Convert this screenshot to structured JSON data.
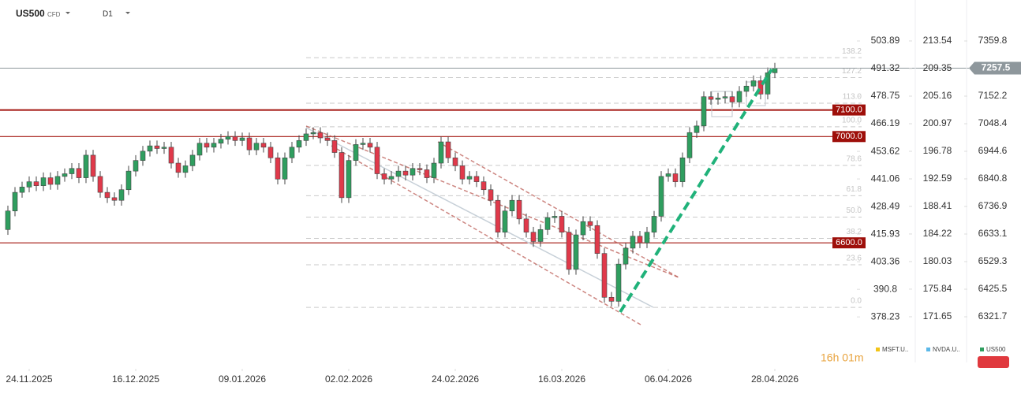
{
  "chart_data": {
    "type": "candlestick",
    "symbol": "US500",
    "instrument_type": "CFD",
    "timeframe": "D1",
    "countdown": "16h 01m",
    "up_color": "#2f9e5f",
    "down_color": "#e0394a",
    "xlim": [
      -1.111,
      120.778
    ],
    "xticks": [
      {
        "value": 3,
        "label": "24.11.2025"
      },
      {
        "value": 18,
        "label": "16.12.2025"
      },
      {
        "value": 33,
        "label": "09.01.2026"
      },
      {
        "value": 48,
        "label": "02.02.2026"
      },
      {
        "value": 63,
        "label": "24.02.2026"
      },
      {
        "value": 78,
        "label": "16.03.2026"
      },
      {
        "value": 93,
        "label": "06.04.2026"
      },
      {
        "value": 108,
        "label": "28.04.2026"
      }
    ],
    "ylim": [
      6149.7,
      7514.0
    ],
    "yticks": [
      7359.8,
      7152.2,
      7048.4,
      6944.6,
      6840.8,
      6736.9,
      6633.1,
      6529.3,
      6425.5,
      6321.7
    ],
    "y2lim": [
      357.48,
      522.55
    ],
    "y2ticks": [
      503.89,
      491.32,
      478.75,
      466.19,
      453.62,
      441.06,
      428.49,
      415.93,
      403.36,
      390.8,
      378.23
    ],
    "y3lim": [
      164.7,
      219.76
    ],
    "y3ticks": [
      213.54,
      209.35,
      205.16,
      200.97,
      196.78,
      192.59,
      188.41,
      184.22,
      180.03,
      175.84,
      171.65
    ],
    "last_price": 7257.5,
    "levels": [
      {
        "value": 7100,
        "label": "7100.0"
      },
      {
        "value": 7000,
        "label": "7000.0"
      },
      {
        "value": 6600,
        "label": "6600.0"
      }
    ],
    "fib_range": [
      6357,
      7037
    ],
    "fib_levels": [
      138.2,
      127.2,
      {
        "value": 113,
        "label": "113.0"
      },
      {
        "value": 100,
        "label": "100.0"
      },
      78.6,
      61.8,
      {
        "value": 50,
        "label": "50.0"
      },
      38.2,
      23.6,
      {
        "value": 0,
        "label": "0.0"
      }
    ],
    "legend": [
      {
        "name": "MSFT.U..",
        "color": "#f2c417"
      },
      {
        "name": "NVDA.U..",
        "color": "#5bb8e8"
      },
      {
        "name": "US500",
        "color": "#2f9e5f"
      }
    ],
    "open": [
      6650,
      6720,
      6790,
      6810,
      6830,
      6815,
      6845,
      6820,
      6850,
      6860,
      6880,
      6845,
      6930,
      6850,
      6790,
      6770,
      6760,
      6800,
      6870,
      6910,
      6945,
      6965,
      6955,
      6960,
      6900,
      6865,
      6890,
      6930,
      6975,
      6960,
      6975,
      6990,
      7000,
      6985,
      6995,
      6950,
      6975,
      6960,
      6920,
      6840,
      6920,
      6960,
      6985,
      7010,
      7015,
      6995,
      6985,
      6940,
      6770,
      6910,
      6970,
      6975,
      6960,
      6860,
      6840,
      6850,
      6870,
      6855,
      6880,
      6875,
      6845,
      6900,
      6980,
      6920,
      6890,
      6840,
      6850,
      6830,
      6800,
      6760,
      6640,
      6720,
      6760,
      6690,
      6640,
      6605,
      6650,
      6695,
      6700,
      6640,
      6500,
      6630,
      6680,
      6665,
      6560,
      6395,
      6380,
      6520,
      6580,
      6625,
      6600,
      6640,
      6700,
      6850,
      6860,
      6830,
      6920,
      7015,
      7040,
      7150,
      7140,
      7145,
      7150,
      7130,
      7170,
      7190,
      7210,
      7160,
      7240
    ],
    "high": [
      6740,
      6810,
      6830,
      6850,
      6850,
      6865,
      6865,
      6870,
      6880,
      6900,
      6900,
      6950,
      6950,
      6870,
      6810,
      6790,
      6820,
      6890,
      6930,
      6965,
      6985,
      6985,
      6980,
      6980,
      6920,
      6910,
      6950,
      6995,
      6995,
      6995,
      7010,
      7020,
      7020,
      7015,
      7015,
      6995,
      6995,
      6980,
      6940,
      6940,
      6980,
      7005,
      7030,
      7035,
      7035,
      7015,
      7005,
      6960,
      6930,
      6990,
      6995,
      6995,
      6980,
      6880,
      6870,
      6890,
      6890,
      6900,
      6900,
      6895,
      6920,
      7000,
      7000,
      6940,
      6910,
      6870,
      6870,
      6850,
      6820,
      6780,
      6740,
      6780,
      6780,
      6710,
      6660,
      6670,
      6715,
      6720,
      6720,
      6660,
      6650,
      6700,
      6700,
      6685,
      6580,
      6415,
      6540,
      6600,
      6645,
      6645,
      6660,
      6720,
      6870,
      6880,
      6880,
      6940,
      7035,
      7060,
      7170,
      7170,
      7165,
      7170,
      7170,
      7190,
      7210,
      7230,
      7230,
      7260,
      7277.5
    ],
    "low": [
      6630,
      6700,
      6770,
      6790,
      6795,
      6795,
      6800,
      6800,
      6830,
      6840,
      6825,
      6825,
      6830,
      6770,
      6750,
      6740,
      6740,
      6780,
      6850,
      6890,
      6925,
      6935,
      6935,
      6880,
      6845,
      6845,
      6870,
      6910,
      6940,
      6940,
      6955,
      6970,
      6965,
      6965,
      6930,
      6930,
      6940,
      6900,
      6820,
      6820,
      6900,
      6940,
      6965,
      6990,
      6975,
      6965,
      6920,
      6750,
      6750,
      6890,
      6950,
      6940,
      6840,
      6820,
      6820,
      6830,
      6835,
      6835,
      6855,
      6825,
      6825,
      6880,
      6900,
      6870,
      6820,
      6820,
      6810,
      6780,
      6740,
      6620,
      6620,
      6700,
      6670,
      6620,
      6585,
      6585,
      6630,
      6675,
      6620,
      6480,
      6480,
      6610,
      6645,
      6540,
      6375,
      6360,
      6360,
      6500,
      6560,
      6580,
      6580,
      6620,
      6680,
      6830,
      6810,
      6810,
      6900,
      6995,
      7020,
      7120,
      7120,
      7125,
      7110,
      7110,
      7150,
      7170,
      7140,
      7140,
      7220
    ],
    "close": [
      6720,
      6790,
      6810,
      6830,
      6815,
      6845,
      6820,
      6850,
      6860,
      6880,
      6845,
      6930,
      6850,
      6790,
      6770,
      6760,
      6800,
      6870,
      6910,
      6945,
      6965,
      6955,
      6960,
      6900,
      6865,
      6890,
      6930,
      6975,
      6960,
      6975,
      6990,
      7000,
      6985,
      6995,
      6950,
      6975,
      6960,
      6920,
      6840,
      6920,
      6960,
      6985,
      7010,
      7015,
      6995,
      6985,
      6940,
      6770,
      6910,
      6970,
      6975,
      6960,
      6860,
      6840,
      6850,
      6870,
      6855,
      6880,
      6875,
      6845,
      6900,
      6980,
      6920,
      6890,
      6840,
      6850,
      6830,
      6800,
      6760,
      6640,
      6720,
      6760,
      6690,
      6640,
      6605,
      6650,
      6695,
      6700,
      6640,
      6500,
      6630,
      6680,
      6665,
      6560,
      6395,
      6380,
      6520,
      6580,
      6625,
      6600,
      6640,
      6700,
      6850,
      6860,
      6830,
      6920,
      7015,
      7040,
      7150,
      7140,
      7145,
      7150,
      7130,
      7170,
      7190,
      7210,
      7160,
      7240,
      7257.5
    ]
  }
}
